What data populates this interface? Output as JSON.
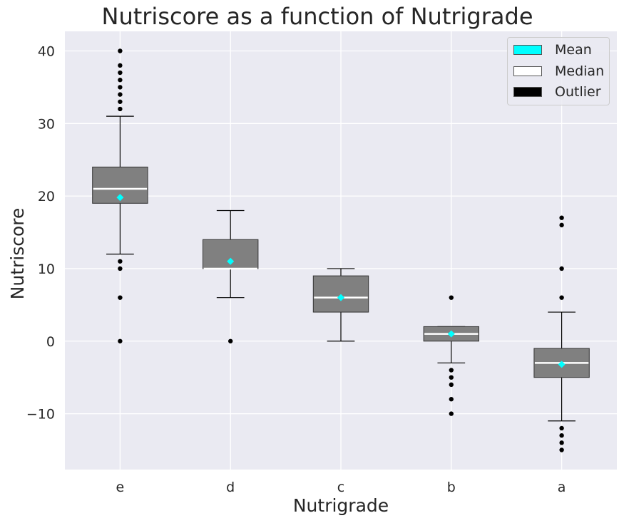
{
  "chart_data": {
    "type": "boxplot",
    "title": "Nutriscore as a function of Nutrigrade",
    "xlabel": "Nutrigrade",
    "ylabel": "Nutriscore",
    "ylim": [
      -17.7,
      42.7
    ],
    "yticks": [
      -10,
      0,
      10,
      20,
      30,
      40
    ],
    "ytick_labels": [
      "−10",
      "0",
      "10",
      "20",
      "30",
      "40"
    ],
    "categories": [
      "e",
      "d",
      "c",
      "b",
      "a"
    ],
    "series": [
      {
        "category": "e",
        "whisker_low": 12,
        "q1": 19,
        "median": 21,
        "q3": 24,
        "whisker_high": 31,
        "mean": 19.8,
        "outliers": [
          0,
          6,
          10,
          11,
          32,
          33,
          34,
          35,
          36,
          37,
          38,
          40
        ]
      },
      {
        "category": "d",
        "whisker_low": 6,
        "q1": 10,
        "median": 10,
        "q3": 14,
        "whisker_high": 18,
        "mean": 11,
        "outliers": [
          0
        ]
      },
      {
        "category": "c",
        "whisker_low": 0,
        "q1": 4,
        "median": 6,
        "q3": 9,
        "whisker_high": 10,
        "mean": 6,
        "outliers": []
      },
      {
        "category": "b",
        "whisker_low": -3,
        "q1": 0,
        "median": 1,
        "q3": 2,
        "whisker_high": 2,
        "mean": 1,
        "outliers": [
          6,
          -4,
          -5,
          -6,
          -8,
          -10
        ]
      },
      {
        "category": "a",
        "whisker_low": -11,
        "q1": -5,
        "median": -3,
        "q3": -1,
        "whisker_high": 4,
        "mean": -3.2,
        "outliers": [
          6,
          10,
          16,
          17,
          -12,
          -13,
          -14,
          -15
        ]
      }
    ],
    "colors": {
      "box": "#808080",
      "median": "#ffffff",
      "mean": "#00ffff",
      "outlier": "#000000",
      "background": "#eaeaf2",
      "grid": "#ffffff"
    }
  },
  "legend": {
    "location": "upper-right",
    "items": [
      {
        "label": "Mean",
        "color": "#00ffff"
      },
      {
        "label": "Median",
        "color": "#ffffff"
      },
      {
        "label": "Outlier",
        "color": "#000000"
      }
    ]
  }
}
